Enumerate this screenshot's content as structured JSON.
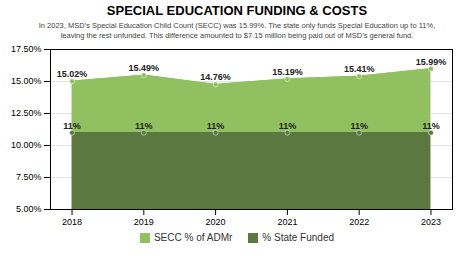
{
  "chart_data": {
    "type": "area",
    "title": "SPECIAL EDUCATION FUNDING & COSTS",
    "subtitle": "In 2023, MSD’s Special Education Child Count (SECC) was 15.99%. The state only funds Special Education up to 11%,\nleaving the rest unfunded. This difference amounted to $7.15 million being paid out of MSD’s general fund.",
    "x": [
      2018,
      2019,
      2020,
      2021,
      2022,
      2023
    ],
    "series": [
      {
        "name": "SECC % of ADMr",
        "color": "#90c060",
        "values": [
          15.02,
          15.49,
          14.76,
          15.19,
          15.41,
          15.99
        ],
        "value_labels": [
          "15.02%",
          "15.49%",
          "14.76%",
          "15.19%",
          "15.41%",
          "15.99%"
        ]
      },
      {
        "name": "% State Funded",
        "color": "#5a7840",
        "values": [
          11.0,
          11.0,
          11.0,
          11.0,
          11.0,
          11.0
        ],
        "value_labels": [
          "11%",
          "11%",
          "11%",
          "11%",
          "11%",
          "11%"
        ]
      }
    ],
    "xlim": [
      2017.7,
      2023.3
    ],
    "xticks": [
      2018,
      2019,
      2020,
      2021,
      2022,
      2023
    ],
    "ylim": [
      5.0,
      17.5
    ],
    "yticks": [
      {
        "value": 5.0,
        "label": "5.00%"
      },
      {
        "value": 7.5,
        "label": "7.50%"
      },
      {
        "value": 10.0,
        "label": "10.00%"
      },
      {
        "value": 12.5,
        "label": "12.50%"
      },
      {
        "value": 15.0,
        "label": "15.00%"
      },
      {
        "value": 17.5,
        "label": "17.50%"
      }
    ],
    "grid": true,
    "data_labels": true,
    "legend": "bottom"
  }
}
